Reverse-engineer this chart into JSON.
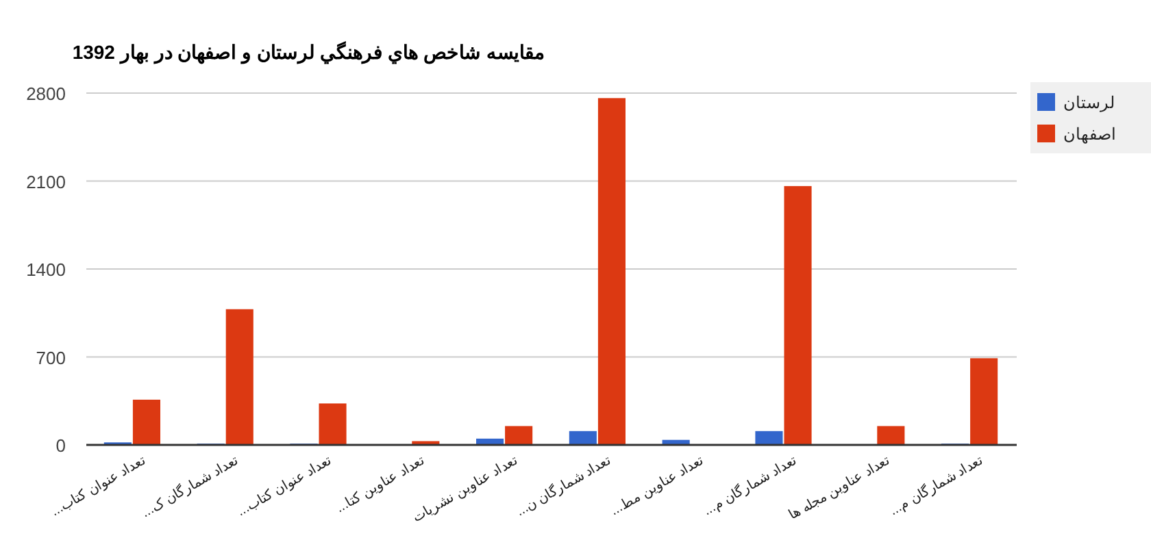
{
  "chart_data": {
    "type": "bar",
    "title": "مقایسه شاخص هاي فرهنگي لرستان و اصفهان در بهار 1392",
    "categories": [
      "تعداد عنوان کتاب...",
      "تعداد شمارگان ک...",
      "تعداد عنوان کتاب...",
      "تعداد عناوین کتا...",
      "تعداد عناوین نشریات",
      "تعداد شمارگان ن...",
      "تعداد عناوین مط...",
      "تعداد شمارگان م...",
      "تعداد عناوین مجله ها",
      "تعداد شمارگان م..."
    ],
    "series": [
      {
        "name": "لرستان",
        "color": "#3366cc",
        "values": [
          20,
          10,
          10,
          0,
          50,
          110,
          40,
          110,
          0,
          10
        ]
      },
      {
        "name": "اصفهان",
        "color": "#dc3912",
        "values": [
          360,
          1080,
          330,
          30,
          150,
          2760,
          0,
          2060,
          150,
          690
        ]
      }
    ],
    "ylim": [
      0,
      2800
    ],
    "yticks": [
      0,
      700,
      1400,
      2100,
      2800
    ],
    "grid": true,
    "legend": "top right"
  }
}
